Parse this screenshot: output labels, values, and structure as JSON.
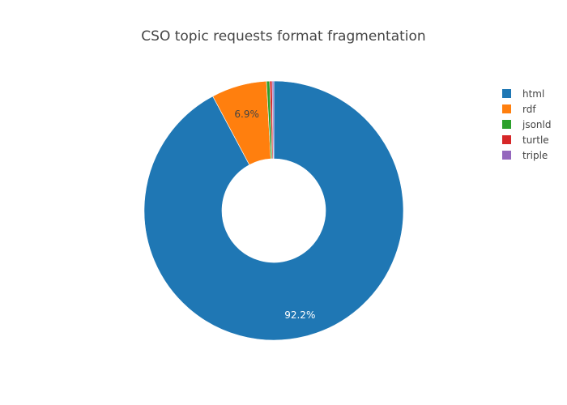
{
  "chart_data": {
    "type": "pie",
    "hole": true,
    "title": "CSO topic requests format fragmentation",
    "legend_position": "top-right",
    "slices": [
      {
        "label": "html",
        "value": 92.2,
        "color": "#1f77b4",
        "text": "92.2%",
        "text_color": "#ffffff"
      },
      {
        "label": "rdf",
        "value": 6.9,
        "color": "#ff7f0e",
        "text": "6.9%",
        "text_color": "#444444"
      },
      {
        "label": "jsonld",
        "value": 0.4,
        "color": "#2ca02c",
        "text": "",
        "text_color": "#444444"
      },
      {
        "label": "turtle",
        "value": 0.3,
        "color": "#d62728",
        "text": "",
        "text_color": "#444444"
      },
      {
        "label": "triple",
        "value": 0.2,
        "color": "#9467bd",
        "text": "",
        "text_color": "#444444"
      }
    ]
  }
}
